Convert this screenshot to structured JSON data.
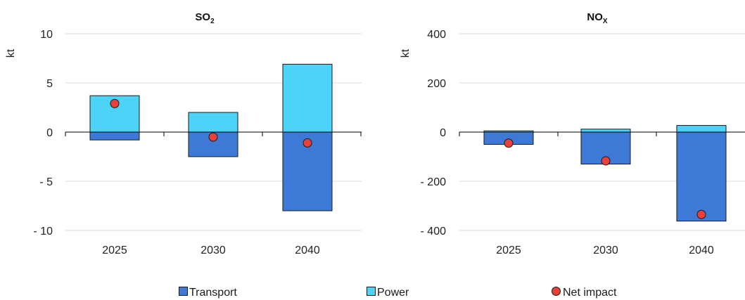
{
  "chart_data": [
    {
      "type": "bar",
      "title_main": "SO",
      "title_sub": "2",
      "ylabel": "kt",
      "categories": [
        "2025",
        "2030",
        "2040"
      ],
      "ylim": [
        -10,
        10
      ],
      "yticks": [
        10,
        5,
        0,
        -5,
        -10
      ],
      "ytick_labels": [
        "10",
        "5",
        "0",
        "- 5",
        "- 10"
      ],
      "series": [
        {
          "name": "Transport",
          "values": [
            -0.8,
            -2.5,
            -8.0
          ]
        },
        {
          "name": "Power",
          "values": [
            3.7,
            2.0,
            6.9
          ]
        },
        {
          "name": "Net impact",
          "values": [
            2.9,
            -0.5,
            -1.1
          ]
        }
      ]
    },
    {
      "type": "bar",
      "title_main": "NO",
      "title_sub": "X",
      "ylabel": "kt",
      "categories": [
        "2025",
        "2030",
        "2040"
      ],
      "ylim": [
        -400,
        400
      ],
      "yticks": [
        400,
        200,
        0,
        -200,
        -400
      ],
      "ytick_labels": [
        "400",
        "200",
        "0",
        "- 200",
        "- 400"
      ],
      "series": [
        {
          "name": "Transport",
          "values": [
            -50,
            -130,
            -362
          ]
        },
        {
          "name": "Power",
          "values": [
            5,
            12,
            27
          ]
        },
        {
          "name": "Net impact",
          "values": [
            -45,
            -117,
            -335
          ]
        }
      ]
    }
  ],
  "legend": {
    "transport": "Transport",
    "power": "Power",
    "net": "Net impact"
  },
  "colors": {
    "transport": "#3f79d6",
    "power": "#4dd3f8",
    "net": "#e8403a",
    "outline": "#1a1a1a"
  }
}
